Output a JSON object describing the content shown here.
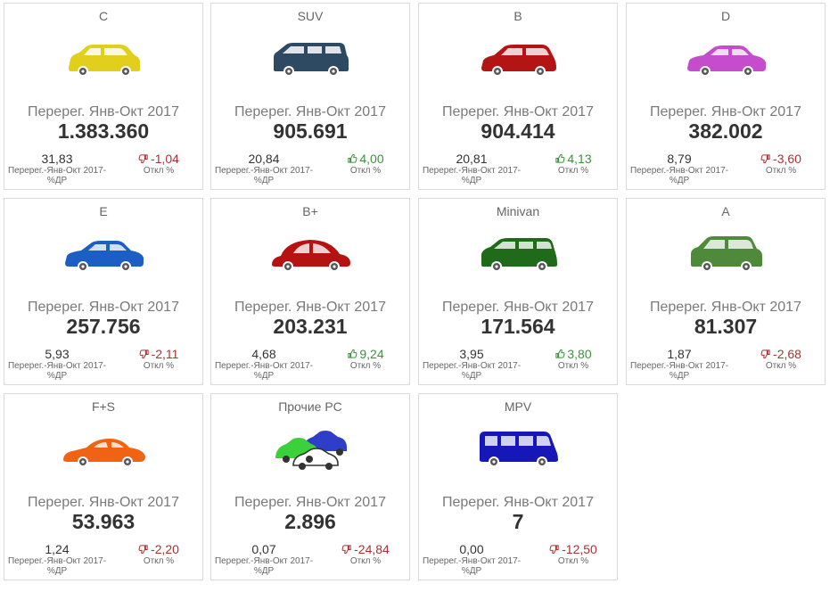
{
  "common": {
    "kpi_label": "Перерег. Янв-Окт 2017",
    "share_label": "Перерег.-Янв-Окт 2017-%ДР",
    "dev_label": "Откл %"
  },
  "cards": [
    {
      "segment": "C",
      "value": "1.383.360",
      "share": "31,83",
      "dev": "-1,04",
      "trend": "down",
      "car_color": "#e2cf1d",
      "icon": "crossover-icon"
    },
    {
      "segment": "SUV",
      "value": "905.691",
      "share": "20,84",
      "dev": "4,00",
      "trend": "up",
      "car_color": "#2e4a63",
      "icon": "suv-icon"
    },
    {
      "segment": "B",
      "value": "904.414",
      "share": "20,81",
      "dev": "4,13",
      "trend": "up",
      "car_color": "#b31515",
      "icon": "hatchback-icon"
    },
    {
      "segment": "D",
      "value": "382.002",
      "share": "8,79",
      "dev": "-3,60",
      "trend": "down",
      "car_color": "#c54ccc",
      "icon": "sedan-icon"
    },
    {
      "segment": "E",
      "value": "257.756",
      "share": "5,93",
      "dev": "-2,11",
      "trend": "down",
      "car_color": "#1c5fc4",
      "icon": "sedan-icon"
    },
    {
      "segment": "B+",
      "value": "203.231",
      "share": "4,68",
      "dev": "9,24",
      "trend": "up",
      "car_color": "#b51212",
      "icon": "beetle-icon"
    },
    {
      "segment": "Minivan",
      "value": "171.564",
      "share": "3,95",
      "dev": "3,80",
      "trend": "up",
      "car_color": "#1f6b1a",
      "icon": "minivan-icon"
    },
    {
      "segment": "A",
      "value": "81.307",
      "share": "1,87",
      "dev": "-2,68",
      "trend": "down",
      "car_color": "#4f8a3a",
      "icon": "small-car-icon"
    },
    {
      "segment": "F+S",
      "value": "53.963",
      "share": "1,24",
      "dev": "-2,20",
      "trend": "down",
      "car_color": "#f06214",
      "icon": "sports-car-icon"
    },
    {
      "segment": "Прочие PC",
      "value": "2.896",
      "share": "0,07",
      "dev": "-24,84",
      "trend": "down",
      "car_color": "#2f5ac8",
      "icon": "multi-car-icon"
    },
    {
      "segment": "MPV",
      "value": "7",
      "share": "0,00",
      "dev": "-12,50",
      "trend": "down",
      "car_color": "#1717b8",
      "icon": "van-icon"
    }
  ]
}
